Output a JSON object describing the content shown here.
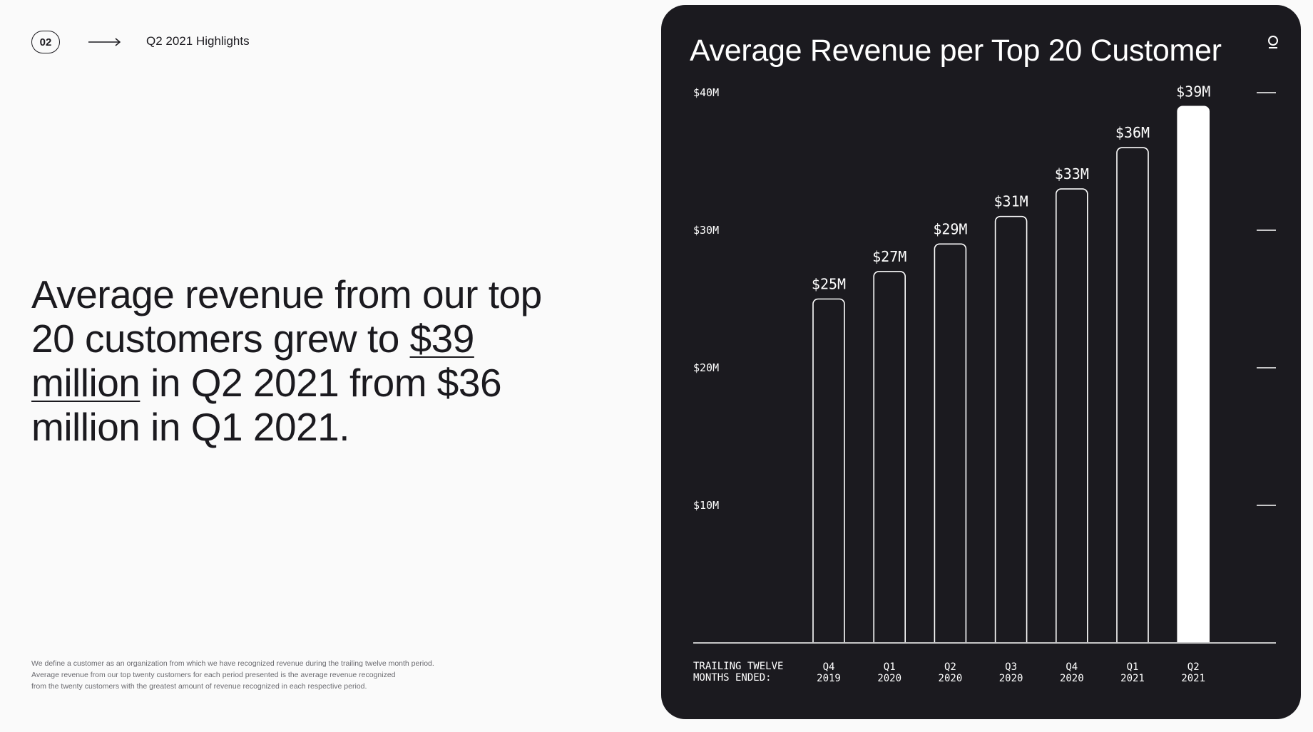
{
  "header": {
    "page_number": "02",
    "arrow_icon": "arrow-right-icon",
    "section_label": "Q2 2021 Highlights"
  },
  "headline": {
    "part1": "Average revenue from our top 20 customers grew to ",
    "highlight": "$39 million",
    "part2": " in Q2 2021 from $36 million in Q1 2021."
  },
  "footnote": {
    "line1": "We define a customer as an organization from which we have recognized revenue during the trailing twelve month period.",
    "line2": "Average revenue from our top twenty customers for each period presented is the average revenue recognized",
    "line3": "from the twenty customers with the greatest amount of revenue recognized in each respective period."
  },
  "colors": {
    "page_background": "#fafafa",
    "card_background": "#1b1a1f",
    "bar_outline": "#ffffff",
    "highlight_bar_fill": "#ffffff"
  },
  "chart_card": {
    "logo_icon": "company-logo-icon"
  },
  "chart_data": {
    "type": "bar",
    "title": "Average Revenue per Top 20 Customer",
    "xlabel_lines": [
      "TRAILING TWELVE",
      "MONTHS ENDED:"
    ],
    "ylabel": "",
    "categories": [
      [
        "Q4",
        "2019"
      ],
      [
        "Q1",
        "2020"
      ],
      [
        "Q2",
        "2020"
      ],
      [
        "Q3",
        "2020"
      ],
      [
        "Q4",
        "2020"
      ],
      [
        "Q1",
        "2021"
      ],
      [
        "Q2",
        "2021"
      ]
    ],
    "values": [
      25,
      27,
      29,
      31,
      33,
      36,
      39
    ],
    "value_labels": [
      "$25M",
      "$27M",
      "$29M",
      "$31M",
      "$33M",
      "$36M",
      "$39M"
    ],
    "highlighted_index": 6,
    "yticks": [
      10,
      20,
      30,
      40
    ],
    "ytick_labels": [
      "$10M",
      "$20M",
      "$30M",
      "$40M"
    ],
    "ylim": [
      0,
      40
    ],
    "grid": false,
    "legend": "none"
  }
}
